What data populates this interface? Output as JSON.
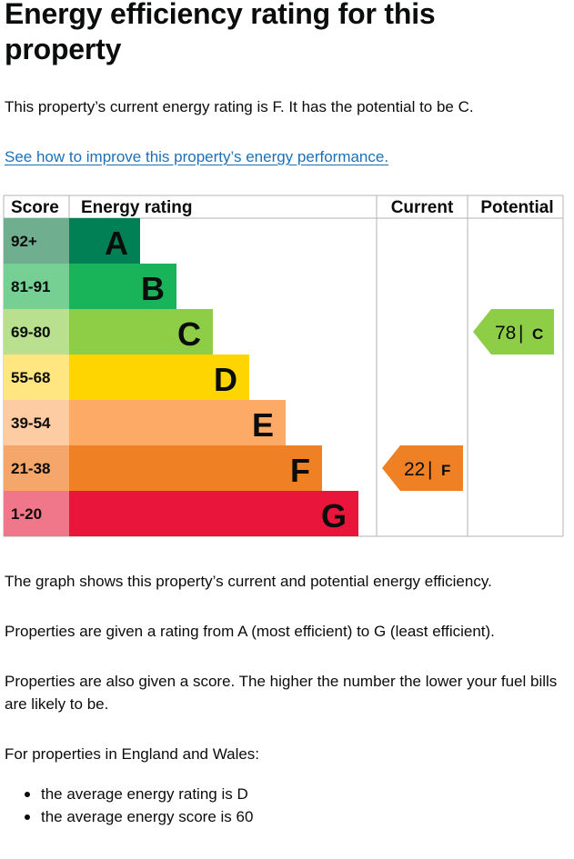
{
  "title": "Energy efficiency rating for this property",
  "intro": "This property’s current energy rating is F. It has the potential to be C.",
  "improve_link": "See how to improve this property’s energy performance.",
  "chart_data": {
    "type": "bar",
    "headers": {
      "score": "Score",
      "rating": "Energy rating",
      "current": "Current",
      "potential": "Potential"
    },
    "bands": [
      {
        "score": "92+",
        "letter": "A",
        "color": "#008054",
        "score_bg": "#6fae8f"
      },
      {
        "score": "81-91",
        "letter": "B",
        "color": "#19b459",
        "score_bg": "#76cf93"
      },
      {
        "score": "69-80",
        "letter": "C",
        "color": "#8dce46",
        "score_bg": "#b8e08e"
      },
      {
        "score": "55-68",
        "letter": "D",
        "color": "#ffd500",
        "score_bg": "#ffe680"
      },
      {
        "score": "39-54",
        "letter": "E",
        "color": "#fcaa65",
        "score_bg": "#fdcca3"
      },
      {
        "score": "21-38",
        "letter": "F",
        "color": "#ef8023",
        "score_bg": "#f5a66a"
      },
      {
        "score": "1-20",
        "letter": "G",
        "color": "#e9153b",
        "score_bg": "#f0768a"
      }
    ],
    "current": {
      "value": 22,
      "band": "F",
      "color": "#ef8023"
    },
    "potential": {
      "value": 78,
      "band": "C",
      "color": "#8dce46"
    }
  },
  "explanations": [
    "The graph shows this property’s current and potential energy efficiency.",
    "Properties are given a rating from A (most efficient) to G (least efficient).",
    "Properties are also given a score. The higher the number the lower your fuel bills are likely to be.",
    "For properties in England and Wales:"
  ],
  "averages": [
    "the average energy rating is D",
    "the average energy score is 60"
  ]
}
